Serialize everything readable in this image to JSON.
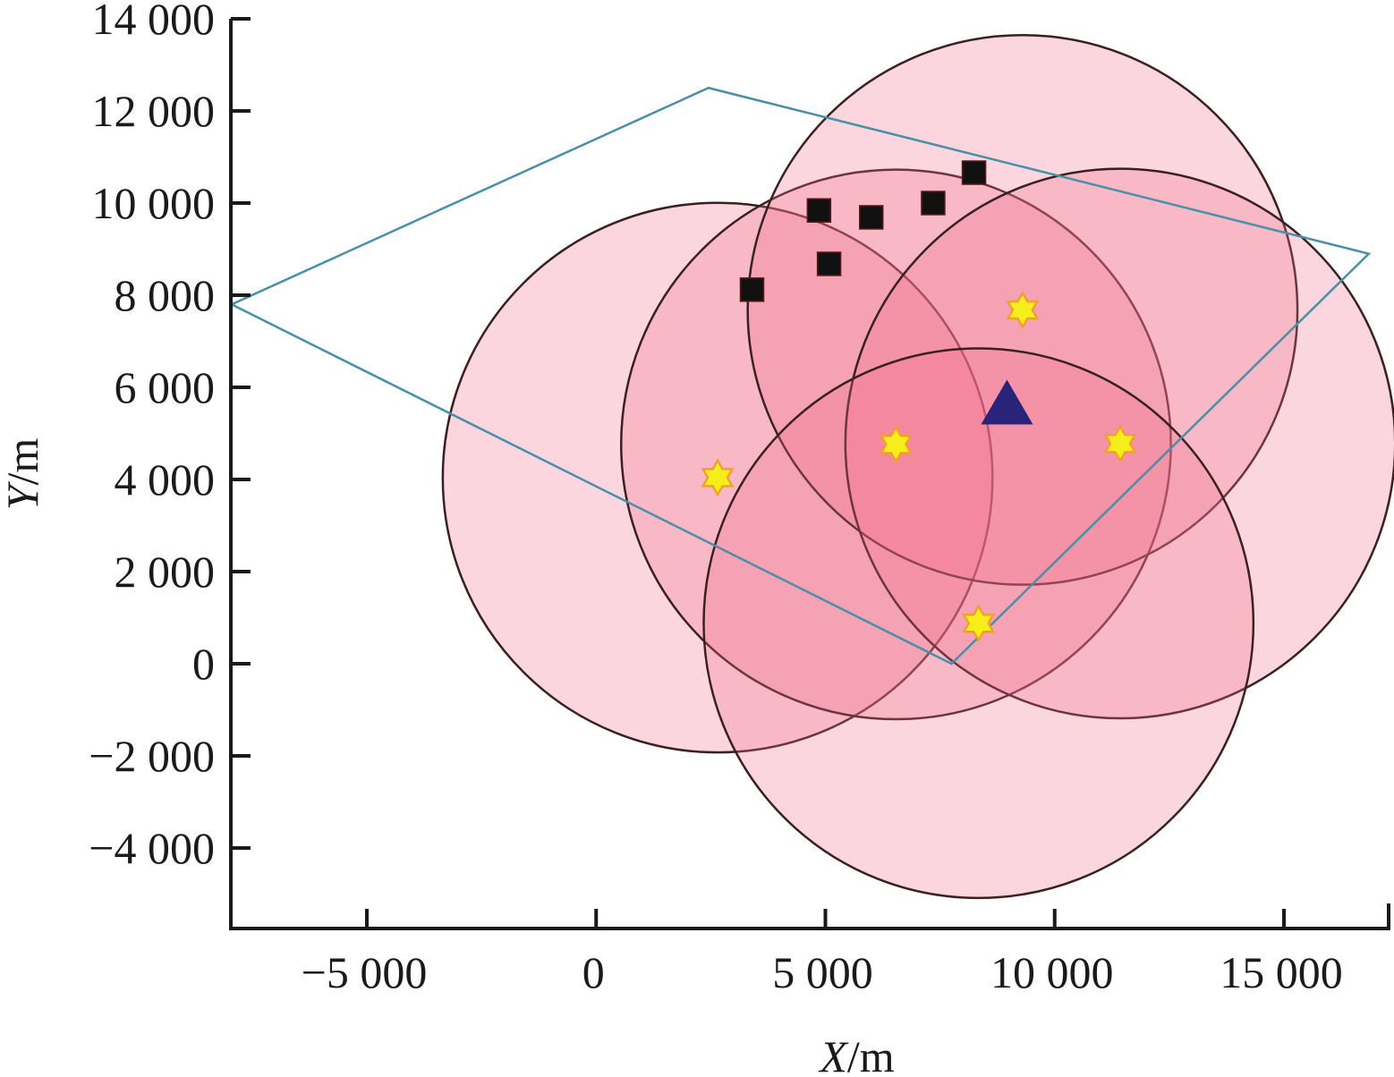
{
  "chart_data": {
    "type": "scatter",
    "title": "",
    "xlabel_var": "X",
    "xlabel_unit": "/m",
    "ylabel_var": "Y",
    "ylabel_unit": "/m",
    "xlim": [
      -7950,
      17300
    ],
    "ylim": [
      -5750,
      14000
    ],
    "grid": false,
    "x_ticks": [
      {
        "value": -5000,
        "label": "−5 000"
      },
      {
        "value": 0,
        "label": "0"
      },
      {
        "value": 5000,
        "label": "5 000"
      },
      {
        "value": 10000,
        "label": "10 000"
      },
      {
        "value": 15000,
        "label": "15 000"
      }
    ],
    "y_ticks": [
      {
        "value": 14000,
        "label": "14 000"
      },
      {
        "value": 12000,
        "label": "12 000"
      },
      {
        "value": 10000,
        "label": "10 000"
      },
      {
        "value": 8000,
        "label": "8 000"
      },
      {
        "value": 6000,
        "label": "6 000"
      },
      {
        "value": 4000,
        "label": "4 000"
      },
      {
        "value": 2000,
        "label": "2 000"
      },
      {
        "value": 0,
        "label": "0"
      },
      {
        "value": -2000,
        "label": "−2 000"
      },
      {
        "value": -4000,
        "label": "−4 000"
      }
    ],
    "boundary_polygon": {
      "color": "#4a8fa8",
      "points": [
        [
          -7950,
          7800
        ],
        [
          2450,
          12500
        ],
        [
          16850,
          8900
        ],
        [
          7750,
          0
        ],
        [
          -7950,
          7800
        ]
      ]
    },
    "coverage_circles": {
      "radius": 6000,
      "fill": "#f06a8a",
      "stroke": "#3a2020",
      "centers": [
        [
          2650,
          4040
        ],
        [
          6540,
          4760
        ],
        [
          9300,
          7680
        ],
        [
          11430,
          4780
        ],
        [
          8340,
          880
        ]
      ]
    },
    "star_markers": {
      "color": "#f5ee1a",
      "points": [
        [
          2650,
          4040
        ],
        [
          6540,
          4760
        ],
        [
          9300,
          7680
        ],
        [
          11430,
          4780
        ],
        [
          8340,
          880
        ]
      ]
    },
    "square_markers": {
      "color": "#111111",
      "points": [
        [
          3400,
          8120
        ],
        [
          4860,
          9840
        ],
        [
          5080,
          8680
        ],
        [
          6000,
          9690
        ],
        [
          7350,
          10000
        ],
        [
          8240,
          10660
        ]
      ]
    },
    "triangle_markers": {
      "color": "#2a237a",
      "points": [
        [
          8960,
          5640
        ]
      ]
    }
  }
}
